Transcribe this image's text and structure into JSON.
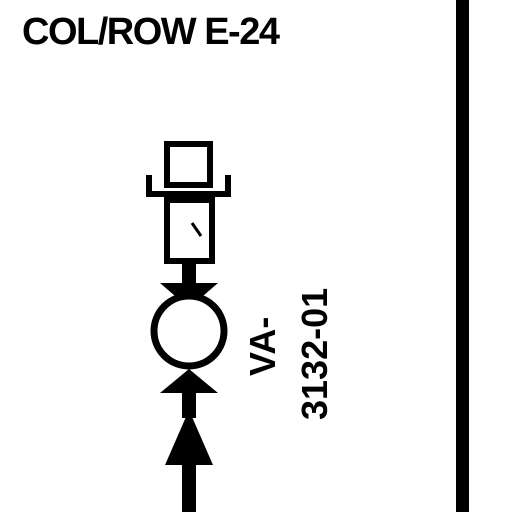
{
  "header": {
    "location": "COL/ROW E-24"
  },
  "valve": {
    "tag_prefix": "VA-",
    "tag_number": "3132-01"
  },
  "colors": {
    "ink": "#000000",
    "paper": "#ffffff"
  }
}
